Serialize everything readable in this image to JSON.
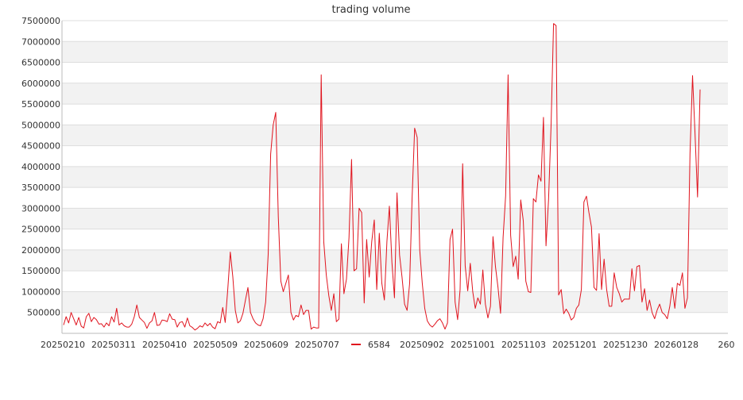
{
  "chart_data": {
    "type": "line",
    "title": "trading volume",
    "xlabel": "",
    "ylabel": "",
    "ylim": [
      0,
      7500000
    ],
    "yticks": [
      500000,
      1000000,
      1500000,
      2000000,
      2500000,
      3000000,
      3500000,
      4000000,
      4500000,
      5000000,
      5500000,
      6000000,
      6500000,
      7000000,
      7500000
    ],
    "yticklabels": [
      "500000",
      "1000000",
      "1500000",
      "2000000",
      "2500000",
      "3000000",
      "3500000",
      "4000000",
      "4500000",
      "5000000",
      "5500000",
      "6000000",
      "6500000",
      "7000000",
      "7500000"
    ],
    "xticklabels": [
      "20250210",
      "20250311",
      "20250410",
      "20250509",
      "20250609",
      "20250707",
      "20250902",
      "20251001",
      "20251103",
      "20251201",
      "20251230",
      "20260128",
      "260"
    ],
    "grid": "horizontal bands",
    "legend_position": "bottom",
    "series": [
      {
        "name": "6584",
        "color": "#e0141e",
        "values": [
          200000,
          400000,
          250000,
          500000,
          350000,
          200000,
          380000,
          170000,
          130000,
          400000,
          480000,
          280000,
          380000,
          330000,
          220000,
          230000,
          150000,
          250000,
          180000,
          400000,
          270000,
          600000,
          200000,
          250000,
          180000,
          150000,
          150000,
          220000,
          400000,
          680000,
          380000,
          320000,
          260000,
          120000,
          250000,
          300000,
          500000,
          190000,
          200000,
          320000,
          310000,
          280000,
          470000,
          340000,
          330000,
          150000,
          260000,
          280000,
          150000,
          370000,
          180000,
          140000,
          80000,
          120000,
          180000,
          150000,
          250000,
          180000,
          240000,
          150000,
          110000,
          280000,
          250000,
          620000,
          260000,
          1050000,
          1950000,
          1350000,
          550000,
          250000,
          300000,
          480000,
          800000,
          1100000,
          500000,
          350000,
          250000,
          200000,
          180000,
          350000,
          750000,
          1900000,
          4300000,
          5000000,
          5300000,
          2800000,
          1250000,
          1000000,
          1200000,
          1400000,
          500000,
          320000,
          430000,
          400000,
          680000,
          450000,
          550000,
          550000,
          100000,
          150000,
          130000,
          130000,
          6200000,
          2200000,
          1400000,
          900000,
          550000,
          950000,
          280000,
          340000,
          2150000,
          950000,
          1300000,
          2300000,
          4170000,
          1500000,
          1550000,
          3000000,
          2900000,
          730000,
          2250000,
          1350000,
          2200000,
          2720000,
          1050000,
          2400000,
          1200000,
          800000,
          2200000,
          3050000,
          1700000,
          850000,
          3370000,
          1880000,
          1350000,
          700000,
          550000,
          1200000,
          3250000,
          4920000,
          4700000,
          2000000,
          1200000,
          600000,
          300000,
          200000,
          150000,
          220000,
          300000,
          350000,
          250000,
          100000,
          250000,
          2250000,
          2500000,
          750000,
          330000,
          1050000,
          4070000,
          1620000,
          1020000,
          1680000,
          1000000,
          600000,
          850000,
          700000,
          1520000,
          700000,
          370000,
          650000,
          2320000,
          1600000,
          1100000,
          480000,
          2300000,
          3300000,
          6200000,
          2350000,
          1600000,
          1850000,
          1300000,
          3200000,
          2700000,
          1250000,
          1000000,
          980000,
          3230000,
          3150000,
          3800000,
          3650000,
          5180000,
          2100000,
          3200000,
          5000000,
          7430000,
          7380000,
          920000,
          1050000,
          470000,
          580000,
          480000,
          320000,
          380000,
          600000,
          680000,
          1050000,
          3150000,
          3290000,
          2900000,
          2550000,
          1100000,
          1030000,
          2390000,
          1050000,
          1780000,
          1050000,
          650000,
          650000,
          1450000,
          1100000,
          950000,
          750000,
          820000,
          820000,
          820000,
          1550000,
          1020000,
          1600000,
          1630000,
          750000,
          1070000,
          550000,
          800000,
          500000,
          350000,
          560000,
          700000,
          500000,
          450000,
          350000,
          650000,
          1100000,
          600000,
          1200000,
          1150000,
          1450000,
          600000,
          850000,
          4300000,
          6180000,
          4800000,
          3270000,
          5850000
        ]
      }
    ]
  }
}
